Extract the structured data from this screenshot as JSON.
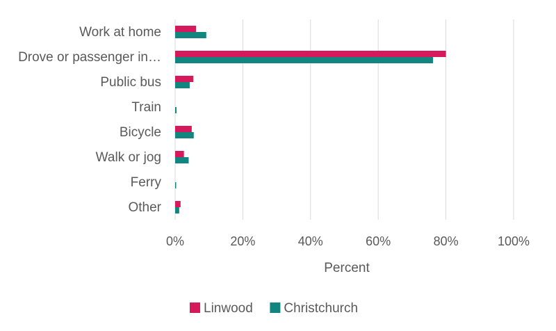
{
  "chart_data": {
    "type": "bar",
    "orientation": "horizontal",
    "categories": [
      "Work at home",
      "Drove or passenger in…",
      "Public bus",
      "Train",
      "Bicycle",
      "Walk or jog",
      "Ferry",
      "Other"
    ],
    "series": [
      {
        "name": "Linwood",
        "color": "#d6195b",
        "values": [
          6.2,
          80,
          5.4,
          0,
          4.9,
          2.6,
          0,
          1.6
        ]
      },
      {
        "name": "Christchurch",
        "color": "#138580",
        "values": [
          9.2,
          76.2,
          4.3,
          0.4,
          5.5,
          4.0,
          0.3,
          1.2
        ]
      }
    ],
    "xlabel": "Percent",
    "ylabel": "",
    "xlim": [
      0,
      100
    ],
    "xticks": [
      "0%",
      "20%",
      "40%",
      "60%",
      "80%",
      "100%"
    ],
    "grid": "vertical",
    "legend_position": "bottom"
  }
}
